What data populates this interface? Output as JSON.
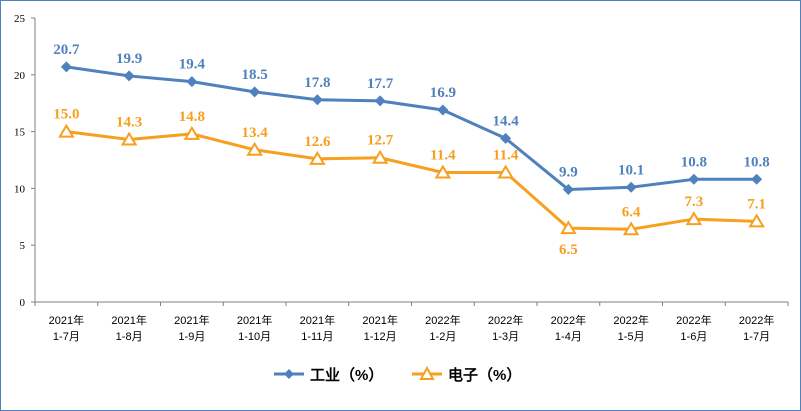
{
  "chart_data": {
    "type": "line",
    "title": "",
    "xlabel": "",
    "ylabel": "",
    "ylim": [
      0,
      25
    ],
    "yticks": [
      "0",
      "5",
      "10",
      "15",
      "20",
      "25"
    ],
    "grid": false,
    "legend_position": "bottom",
    "categories": [
      [
        "2021年",
        "1-7月"
      ],
      [
        "2021年",
        "1-8月"
      ],
      [
        "2021年",
        "1-9月"
      ],
      [
        "2021年",
        "1-10月"
      ],
      [
        "2021年",
        "1-11月"
      ],
      [
        "2021年",
        "1-12月"
      ],
      [
        "2022年",
        "1-2月"
      ],
      [
        "2022年",
        "1-3月"
      ],
      [
        "2022年",
        "1-4月"
      ],
      [
        "2022年",
        "1-5月"
      ],
      [
        "2022年",
        "1-6月"
      ],
      [
        "2022年",
        "1-7月"
      ]
    ],
    "series": [
      {
        "name": "工业（%）",
        "color": "#4f81bd",
        "marker": "diamond",
        "values": [
          20.7,
          19.9,
          19.4,
          18.5,
          17.8,
          17.7,
          16.9,
          14.4,
          9.9,
          10.1,
          10.8,
          10.8
        ],
        "labels": [
          "20.7",
          "19.9",
          "19.4",
          "18.5",
          "17.8",
          "17.7",
          "16.9",
          "14.4",
          "9.9",
          "10.1",
          "10.8",
          "10.8"
        ]
      },
      {
        "name": "电子（%）",
        "color": "#f79f1f",
        "marker": "triangle",
        "values": [
          15.0,
          14.3,
          14.8,
          13.4,
          12.6,
          12.7,
          11.4,
          11.4,
          6.5,
          6.4,
          7.3,
          7.1
        ],
        "labels": [
          "15.0",
          "14.3",
          "14.8",
          "13.4",
          "12.6",
          "12.7",
          "11.4",
          "11.4",
          "6.5",
          "6.4",
          "7.3",
          "7.1"
        ],
        "label_below": [
          false,
          false,
          false,
          false,
          false,
          false,
          false,
          false,
          true,
          false,
          false,
          false
        ]
      }
    ]
  }
}
